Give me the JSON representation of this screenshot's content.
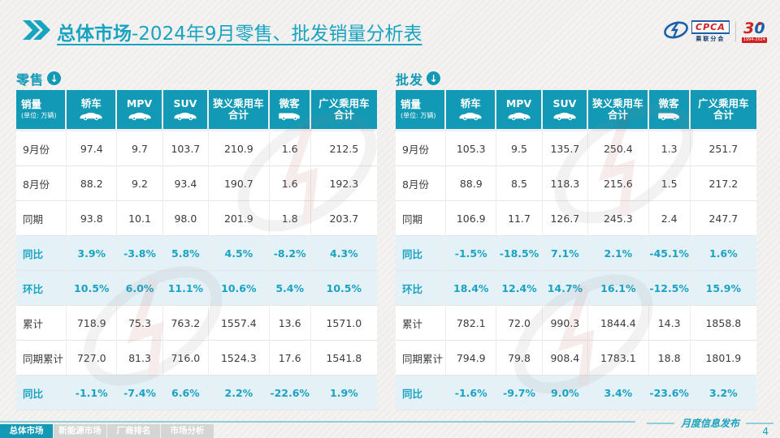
{
  "slide": {
    "title": {
      "bold": "总体市场",
      "rest": "-2024年9月零售、批发销量分析表"
    },
    "logo": {
      "cpca": "CPCA",
      "sub_label": "乘联分会",
      "anniversary_number": "30",
      "anniversary_years": "1994-2024"
    }
  },
  "columns": [
    {
      "label": "销量",
      "unit": "(单位: 万辆)"
    },
    {
      "label": "轿车",
      "icon": "car-icon"
    },
    {
      "label": "MPV",
      "icon": "car-icon"
    },
    {
      "label": "SUV",
      "icon": "car-icon"
    },
    {
      "label": "狭义乘用车",
      "label2": "合计"
    },
    {
      "label": "微客",
      "icon": "van-icon"
    },
    {
      "label": "广义乘用车",
      "label2": "合计"
    }
  ],
  "tables": [
    {
      "id": "retail",
      "name": "零售",
      "rows": [
        {
          "label": "9月份",
          "highlight": false,
          "values": [
            "97.4",
            "9.7",
            "103.7",
            "210.9",
            "1.6",
            "212.5"
          ]
        },
        {
          "label": "8月份",
          "highlight": false,
          "values": [
            "88.2",
            "9.2",
            "93.4",
            "190.7",
            "1.6",
            "192.3"
          ]
        },
        {
          "label": "同期",
          "highlight": false,
          "values": [
            "93.8",
            "10.1",
            "98.0",
            "201.9",
            "1.8",
            "203.7"
          ]
        },
        {
          "label": "同比",
          "highlight": true,
          "values": [
            "3.9%",
            "-3.8%",
            "5.8%",
            "4.5%",
            "-8.2%",
            "4.3%"
          ]
        },
        {
          "label": "环比",
          "highlight": true,
          "values": [
            "10.5%",
            "6.0%",
            "11.1%",
            "10.6%",
            "5.4%",
            "10.5%"
          ]
        },
        {
          "label": "累计",
          "highlight": false,
          "values": [
            "718.9",
            "75.3",
            "763.2",
            "1557.4",
            "13.6",
            "1571.0"
          ]
        },
        {
          "label": "同期累计",
          "highlight": false,
          "values": [
            "727.0",
            "81.3",
            "716.0",
            "1524.3",
            "17.6",
            "1541.8"
          ]
        },
        {
          "label": "同比",
          "highlight": true,
          "values": [
            "-1.1%",
            "-7.4%",
            "6.6%",
            "2.2%",
            "-22.6%",
            "1.9%"
          ]
        }
      ]
    },
    {
      "id": "wholesale",
      "name": "批发",
      "rows": [
        {
          "label": "9月份",
          "highlight": false,
          "values": [
            "105.3",
            "9.5",
            "135.7",
            "250.4",
            "1.3",
            "251.7"
          ]
        },
        {
          "label": "8月份",
          "highlight": false,
          "values": [
            "88.9",
            "8.5",
            "118.3",
            "215.6",
            "1.5",
            "217.2"
          ]
        },
        {
          "label": "同期",
          "highlight": false,
          "values": [
            "106.9",
            "11.7",
            "126.7",
            "245.3",
            "2.4",
            "247.7"
          ]
        },
        {
          "label": "同比",
          "highlight": true,
          "values": [
            "-1.5%",
            "-18.5%",
            "7.1%",
            "2.1%",
            "-45.1%",
            "1.6%"
          ]
        },
        {
          "label": "环比",
          "highlight": true,
          "values": [
            "18.4%",
            "12.4%",
            "14.7%",
            "16.1%",
            "-12.5%",
            "15.9%"
          ]
        },
        {
          "label": "累计",
          "highlight": false,
          "values": [
            "782.1",
            "72.0",
            "990.3",
            "1844.4",
            "14.3",
            "1858.8"
          ]
        },
        {
          "label": "同期累计",
          "highlight": false,
          "values": [
            "794.9",
            "79.8",
            "908.4",
            "1783.1",
            "18.8",
            "1801.9"
          ]
        },
        {
          "label": "同比",
          "highlight": true,
          "values": [
            "-1.6%",
            "-9.7%",
            "9.0%",
            "3.4%",
            "-23.6%",
            "3.2%"
          ]
        }
      ]
    }
  ],
  "footer": {
    "tabs": [
      {
        "label": "总体市场",
        "active": true
      },
      {
        "label": "新能源市场",
        "active": false
      },
      {
        "label": "厂商排名",
        "active": false
      },
      {
        "label": "市场分析",
        "active": false
      }
    ],
    "publish_label": "月度信息发布",
    "page_number": "4"
  },
  "colors": {
    "teal": "#1299b5",
    "title_teal": "#18a3c1",
    "highlight_bg": "#e4f2f8",
    "highlight_text": "#1aa2c2",
    "logo_blue": "#1b5faa",
    "logo_red": "#d02020"
  }
}
